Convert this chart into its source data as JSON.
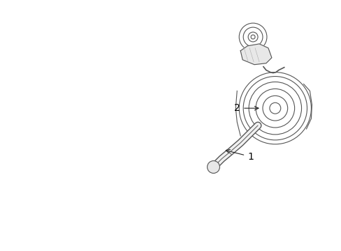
{
  "background_color": "#ffffff",
  "line_color": "#555555",
  "label1_text": "1",
  "label2_text": "2",
  "arrow_color": "#222222",
  "font_size": 10,
  "belt_offsets": [
    -0.02,
    -0.013,
    -0.006,
    0.001,
    0.008,
    0.015
  ],
  "belt_lws": [
    0.7,
    0.7,
    0.8,
    0.8,
    0.7,
    0.6
  ],
  "belt_colors": [
    "#888888",
    "#666666",
    "#555555",
    "#555555",
    "#666666",
    "#888888"
  ]
}
